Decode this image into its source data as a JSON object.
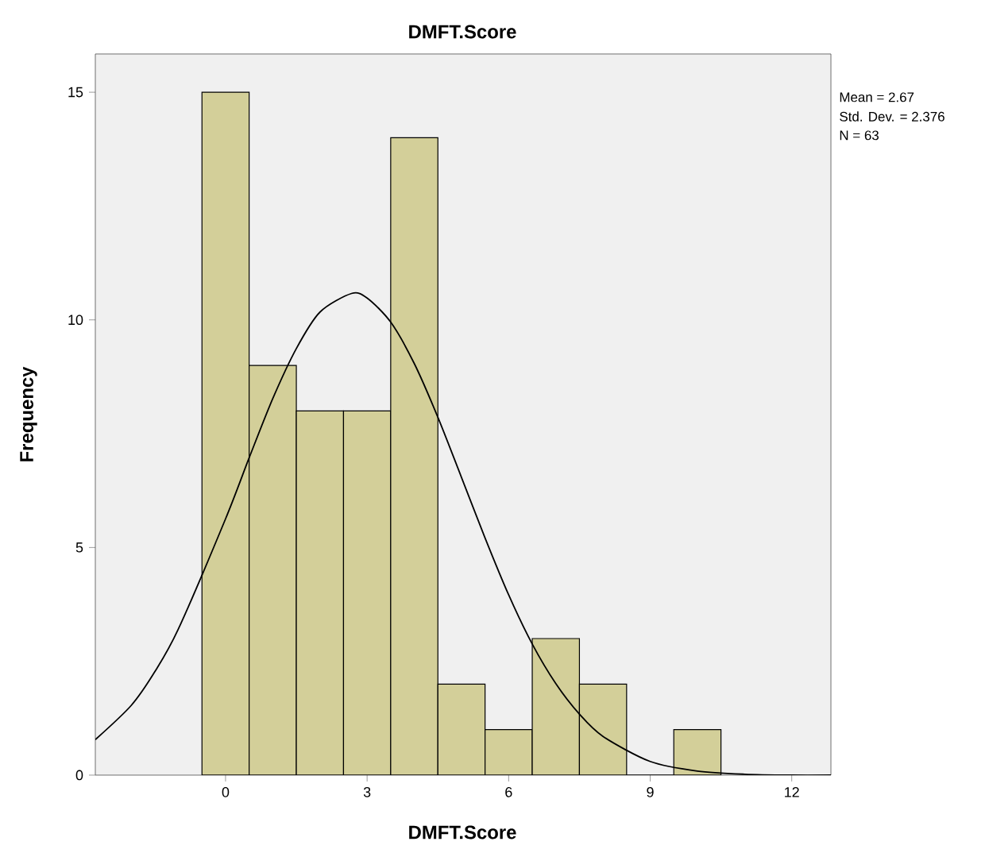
{
  "chart_data": {
    "type": "histogram",
    "title": "DMFT.Score",
    "xlabel": "DMFT.Score",
    "ylabel": "Frequency",
    "xlim": [
      -2.76,
      12.83
    ],
    "ylim": [
      0,
      15.84
    ],
    "xticks": [
      0,
      3,
      6,
      9,
      12
    ],
    "yticks": [
      0,
      5,
      10,
      15
    ],
    "grid": false,
    "series": [
      {
        "color": "#d3cf99",
        "bins": [
          -0.5,
          0.5,
          1.5,
          2.5,
          3.5,
          4.5,
          5.5,
          6.5,
          7.5,
          8.5,
          9.5,
          10.5
        ],
        "values": [
          15,
          9,
          8,
          8,
          14,
          2,
          1,
          3,
          2,
          0,
          1
        ]
      },
      {
        "type": "line",
        "color": "#000000",
        "marker": "none",
        "x": [
          -2.76,
          -2,
          -1.5,
          -1,
          0,
          0.5,
          1,
          1.5,
          2,
          2.67,
          3,
          3.5,
          4,
          4.5,
          5,
          5.5,
          6,
          6.5,
          7,
          7.5,
          8,
          9,
          10,
          11,
          12,
          12.83
        ],
        "values": [
          0.78,
          1.53,
          2.27,
          3.21,
          5.63,
          6.97,
          8.27,
          9.37,
          10.17,
          10.58,
          10.48,
          9.95,
          9.04,
          7.86,
          6.54,
          5.21,
          3.96,
          2.88,
          2.01,
          1.34,
          0.85,
          0.3,
          0.09,
          0.02,
          0,
          0
        ]
      }
    ],
    "annotations": [
      "Mean = 2.67",
      "Std. Dev. = 2.376",
      "N = 63"
    ]
  }
}
